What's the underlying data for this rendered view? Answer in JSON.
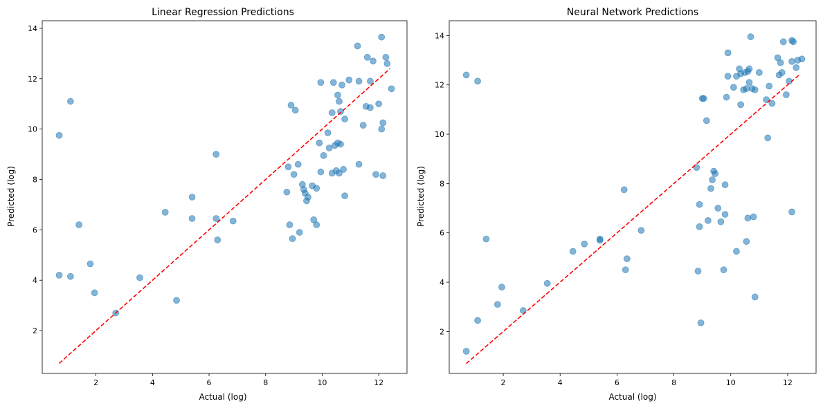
{
  "chart_data": [
    {
      "type": "scatter",
      "title": "Linear Regression Predictions",
      "xlabel": "Actual (log)",
      "ylabel": "Predicted (log)",
      "xlim": [
        0.1,
        13.0
      ],
      "ylim": [
        0.3,
        14.3
      ],
      "xticks": [
        2,
        4,
        6,
        8,
        10,
        12
      ],
      "yticks": [
        2,
        4,
        6,
        8,
        10,
        12,
        14
      ],
      "point_color": "#1f77b4",
      "point_alpha": 0.55,
      "reference_line": {
        "x": [
          0.7,
          12.4
        ],
        "y": [
          0.7,
          12.4
        ],
        "color": "#ff0000",
        "style": "dashed"
      },
      "points": [
        [
          0.7,
          9.75
        ],
        [
          0.7,
          4.2
        ],
        [
          1.1,
          11.1
        ],
        [
          1.1,
          4.15
        ],
        [
          1.4,
          6.2
        ],
        [
          1.8,
          4.65
        ],
        [
          1.95,
          3.5
        ],
        [
          2.7,
          2.7
        ],
        [
          3.55,
          4.1
        ],
        [
          4.45,
          6.7
        ],
        [
          4.85,
          3.2
        ],
        [
          5.4,
          7.3
        ],
        [
          5.4,
          6.45
        ],
        [
          6.25,
          9.0
        ],
        [
          6.25,
          6.45
        ],
        [
          6.3,
          5.6
        ],
        [
          6.85,
          6.35
        ],
        [
          8.75,
          7.5
        ],
        [
          8.8,
          8.5
        ],
        [
          8.85,
          6.2
        ],
        [
          8.9,
          10.95
        ],
        [
          8.95,
          5.65
        ],
        [
          9.0,
          8.2
        ],
        [
          9.05,
          10.75
        ],
        [
          9.15,
          8.6
        ],
        [
          9.2,
          5.9
        ],
        [
          9.3,
          7.8
        ],
        [
          9.35,
          7.6
        ],
        [
          9.4,
          7.45
        ],
        [
          9.45,
          7.15
        ],
        [
          9.5,
          7.3
        ],
        [
          9.65,
          7.75
        ],
        [
          9.7,
          6.4
        ],
        [
          9.8,
          7.65
        ],
        [
          9.8,
          6.2
        ],
        [
          9.9,
          9.45
        ],
        [
          9.95,
          11.85
        ],
        [
          9.95,
          8.3
        ],
        [
          10.05,
          8.95
        ],
        [
          10.2,
          9.85
        ],
        [
          10.25,
          9.25
        ],
        [
          10.35,
          10.65
        ],
        [
          10.35,
          8.25
        ],
        [
          10.4,
          11.85
        ],
        [
          10.45,
          9.35
        ],
        [
          10.5,
          8.35
        ],
        [
          10.55,
          9.45
        ],
        [
          10.55,
          11.35
        ],
        [
          10.6,
          11.1
        ],
        [
          10.6,
          8.25
        ],
        [
          10.65,
          9.4
        ],
        [
          10.65,
          10.7
        ],
        [
          10.7,
          11.75
        ],
        [
          10.75,
          8.4
        ],
        [
          10.8,
          10.4
        ],
        [
          10.8,
          7.35
        ],
        [
          10.95,
          11.95
        ],
        [
          11.25,
          13.3
        ],
        [
          11.3,
          8.6
        ],
        [
          11.3,
          11.9
        ],
        [
          11.45,
          10.15
        ],
        [
          11.55,
          10.9
        ],
        [
          11.6,
          12.85
        ],
        [
          11.7,
          11.9
        ],
        [
          11.7,
          10.85
        ],
        [
          11.8,
          12.7
        ],
        [
          11.9,
          8.2
        ],
        [
          12.0,
          11.0
        ],
        [
          12.1,
          13.65
        ],
        [
          12.1,
          10.0
        ],
        [
          12.15,
          10.25
        ],
        [
          12.15,
          8.15
        ],
        [
          12.25,
          12.85
        ],
        [
          12.3,
          12.6
        ],
        [
          12.45,
          11.6
        ]
      ]
    },
    {
      "type": "scatter",
      "title": "Neural Network Predictions",
      "xlabel": "Actual (log)",
      "ylabel": "Predicted (log)",
      "xlim": [
        0.1,
        13.0
      ],
      "ylim": [
        0.3,
        14.6
      ],
      "xticks": [
        2,
        4,
        6,
        8,
        10,
        12
      ],
      "yticks": [
        2,
        4,
        6,
        8,
        10,
        12,
        14
      ],
      "point_color": "#1f77b4",
      "point_alpha": 0.55,
      "reference_line": {
        "x": [
          0.7,
          12.4
        ],
        "y": [
          0.7,
          12.4
        ],
        "color": "#ff0000",
        "style": "dashed"
      },
      "points": [
        [
          0.7,
          12.4
        ],
        [
          0.7,
          1.2
        ],
        [
          1.1,
          12.15
        ],
        [
          1.1,
          2.45
        ],
        [
          1.4,
          5.75
        ],
        [
          1.8,
          3.1
        ],
        [
          1.95,
          3.8
        ],
        [
          2.7,
          2.85
        ],
        [
          3.55,
          3.95
        ],
        [
          4.45,
          5.25
        ],
        [
          4.85,
          5.55
        ],
        [
          5.4,
          5.75
        ],
        [
          5.4,
          5.7
        ],
        [
          6.25,
          7.75
        ],
        [
          6.3,
          4.5
        ],
        [
          6.35,
          4.95
        ],
        [
          6.85,
          6.1
        ],
        [
          8.8,
          8.65
        ],
        [
          8.85,
          4.45
        ],
        [
          8.9,
          6.25
        ],
        [
          8.9,
          7.15
        ],
        [
          8.95,
          2.35
        ],
        [
          9.0,
          11.45
        ],
        [
          9.05,
          11.45
        ],
        [
          9.15,
          10.55
        ],
        [
          9.2,
          6.5
        ],
        [
          9.3,
          7.8
        ],
        [
          9.35,
          8.15
        ],
        [
          9.4,
          8.5
        ],
        [
          9.45,
          8.4
        ],
        [
          9.55,
          7.0
        ],
        [
          9.65,
          6.45
        ],
        [
          9.75,
          4.5
        ],
        [
          9.8,
          6.75
        ],
        [
          9.8,
          7.95
        ],
        [
          9.85,
          11.5
        ],
        [
          9.9,
          12.35
        ],
        [
          9.9,
          13.3
        ],
        [
          10.1,
          11.9
        ],
        [
          10.2,
          5.25
        ],
        [
          10.2,
          12.35
        ],
        [
          10.3,
          12.65
        ],
        [
          10.35,
          11.2
        ],
        [
          10.35,
          12.45
        ],
        [
          10.45,
          11.8
        ],
        [
          10.5,
          12.5
        ],
        [
          10.55,
          11.85
        ],
        [
          10.55,
          5.65
        ],
        [
          10.6,
          12.55
        ],
        [
          10.6,
          6.6
        ],
        [
          10.65,
          12.1
        ],
        [
          10.65,
          12.65
        ],
        [
          10.7,
          13.95
        ],
        [
          10.75,
          11.85
        ],
        [
          10.8,
          6.65
        ],
        [
          10.85,
          11.8
        ],
        [
          10.85,
          3.4
        ],
        [
          11.0,
          12.5
        ],
        [
          11.25,
          11.4
        ],
        [
          11.3,
          9.85
        ],
        [
          11.35,
          11.95
        ],
        [
          11.45,
          11.25
        ],
        [
          11.65,
          13.1
        ],
        [
          11.7,
          12.4
        ],
        [
          11.75,
          12.9
        ],
        [
          11.8,
          12.5
        ],
        [
          11.85,
          13.75
        ],
        [
          11.95,
          11.6
        ],
        [
          12.05,
          12.15
        ],
        [
          12.15,
          12.95
        ],
        [
          12.15,
          13.8
        ],
        [
          12.15,
          6.85
        ],
        [
          12.2,
          13.75
        ],
        [
          12.3,
          12.7
        ],
        [
          12.35,
          13.0
        ],
        [
          12.5,
          13.05
        ]
      ]
    }
  ]
}
